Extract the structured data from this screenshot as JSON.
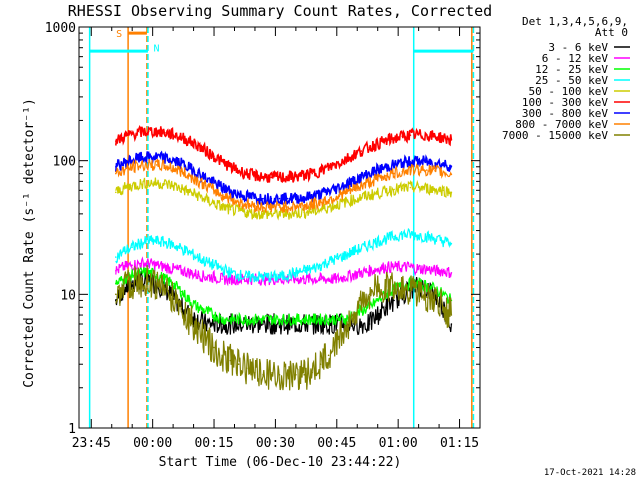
{
  "chart_data": {
    "type": "line",
    "title": "RHESSI Observing Summary Count Rates, Corrected",
    "xlabel": "Start Time (06-Dec-10 23:44:22)",
    "ylabel": "Corrected Count Rate (s⁻¹ detector⁻¹)",
    "yscale": "log",
    "ylim": [
      1,
      1000
    ],
    "xlim_minutes": [
      -3,
      95
    ],
    "x_ticks": [
      {
        "m": 0,
        "label": "23:45"
      },
      {
        "m": 15,
        "label": "00:00"
      },
      {
        "m": 30,
        "label": "00:15"
      },
      {
        "m": 45,
        "label": "00:30"
      },
      {
        "m": 60,
        "label": "00:45"
      },
      {
        "m": 75,
        "label": "01:00"
      },
      {
        "m": 90,
        "label": "01:15"
      }
    ],
    "y_ticks": [
      {
        "v": 1,
        "label": "1"
      },
      {
        "v": 10,
        "label": "10"
      },
      {
        "v": 100,
        "label": "100"
      },
      {
        "v": 1000,
        "label": "1000"
      }
    ],
    "legend_header": [
      "Det 1,3,4,5,6,9,",
      "Att 0"
    ],
    "series": [
      {
        "name": "3 - 6 keV",
        "color": "#000000",
        "x": [
          6,
          8,
          10,
          12,
          14,
          16,
          18,
          20,
          22,
          24,
          26,
          28,
          30,
          32,
          34,
          36,
          38,
          40,
          42,
          44,
          46,
          48,
          50,
          52,
          54,
          56,
          58,
          60,
          62,
          64,
          66,
          68,
          70,
          72,
          74,
          76,
          78,
          80,
          82,
          84,
          86,
          88
        ],
        "y": [
          9,
          11,
          12,
          12.5,
          12.5,
          12,
          11,
          9.5,
          8,
          7,
          6.5,
          6,
          6,
          6,
          6,
          6,
          6,
          6,
          6,
          6,
          6,
          6,
          6,
          6,
          6,
          6,
          6,
          6,
          6,
          6,
          6,
          6,
          7,
          8,
          9,
          10,
          11,
          11.5,
          11,
          10,
          8,
          6
        ]
      },
      {
        "name": "6 - 12 keV",
        "color": "#ff00ff",
        "x": [
          6,
          8,
          10,
          12,
          14,
          16,
          18,
          20,
          22,
          24,
          26,
          28,
          30,
          32,
          34,
          36,
          38,
          40,
          42,
          44,
          46,
          48,
          50,
          52,
          54,
          56,
          58,
          60,
          62,
          64,
          66,
          68,
          70,
          72,
          74,
          76,
          78,
          80,
          82,
          84,
          86,
          88
        ],
        "y": [
          15,
          16,
          16.5,
          17,
          17,
          16.5,
          16,
          15.5,
          15,
          14.5,
          14,
          13.5,
          13.5,
          13,
          13,
          13,
          13,
          13,
          13,
          13,
          13,
          13,
          13,
          13,
          13,
          13,
          13,
          13,
          13.5,
          14,
          14.5,
          15,
          15.5,
          16,
          16,
          16,
          16,
          15.5,
          15.5,
          15,
          15,
          14.5
        ]
      },
      {
        "name": "12 - 25 keV",
        "color": "#00ff00",
        "x": [
          6,
          8,
          10,
          12,
          14,
          16,
          18,
          20,
          22,
          24,
          26,
          28,
          30,
          32,
          34,
          36,
          38,
          40,
          42,
          44,
          46,
          48,
          50,
          52,
          54,
          56,
          58,
          60,
          62,
          64,
          66,
          68,
          70,
          72,
          74,
          76,
          78,
          80,
          82,
          84,
          86,
          88
        ],
        "y": [
          12,
          13,
          14,
          14.5,
          14.5,
          14,
          13,
          12,
          10.5,
          9,
          8,
          7.5,
          7,
          6.5,
          6.5,
          6.5,
          6.5,
          6.5,
          6.5,
          6.5,
          6.5,
          6.5,
          6.5,
          6.5,
          6.5,
          6.5,
          6.5,
          6.5,
          6.5,
          7,
          7.5,
          8,
          9,
          10,
          11,
          11.5,
          12,
          12,
          11.5,
          11,
          10,
          9
        ]
      },
      {
        "name": "25 - 50 keV",
        "color": "#00ffff",
        "x": [
          6,
          8,
          10,
          12,
          14,
          16,
          18,
          20,
          22,
          24,
          26,
          28,
          30,
          32,
          34,
          36,
          38,
          40,
          42,
          44,
          46,
          48,
          50,
          52,
          54,
          56,
          58,
          60,
          62,
          64,
          66,
          68,
          70,
          72,
          74,
          76,
          78,
          80,
          82,
          84,
          86,
          88
        ],
        "y": [
          19,
          21,
          22.5,
          24,
          25,
          25,
          24.5,
          23.5,
          22,
          20.5,
          19,
          17.5,
          16.5,
          15.5,
          14.5,
          14,
          13.5,
          13.5,
          13.5,
          13.5,
          13.5,
          14,
          14.5,
          15,
          15.5,
          16.5,
          17.5,
          18.5,
          19.5,
          21,
          22,
          23.5,
          25,
          26,
          27,
          28,
          28,
          27.5,
          27,
          26,
          25,
          24
        ]
      },
      {
        "name": "50 - 100 keV",
        "color": "#cccc00",
        "x": [
          6,
          8,
          10,
          12,
          14,
          16,
          18,
          20,
          22,
          24,
          26,
          28,
          30,
          32,
          34,
          36,
          38,
          40,
          42,
          44,
          46,
          48,
          50,
          52,
          54,
          56,
          58,
          60,
          62,
          64,
          66,
          68,
          70,
          72,
          74,
          76,
          78,
          80,
          82,
          84,
          86,
          88
        ],
        "y": [
          58,
          62,
          65,
          67,
          68,
          68,
          67,
          65,
          62,
          58,
          55,
          51,
          48,
          45,
          43,
          42,
          41,
          40,
          40,
          40,
          40,
          40,
          40.5,
          41,
          42,
          43,
          45,
          47,
          49,
          51,
          53,
          55,
          57,
          59,
          61,
          62,
          63,
          63,
          62,
          61,
          60,
          58
        ]
      },
      {
        "name": "100 - 300 keV",
        "color": "#ff0000",
        "x": [
          6,
          8,
          10,
          12,
          14,
          16,
          18,
          20,
          22,
          24,
          26,
          28,
          30,
          32,
          34,
          36,
          38,
          40,
          42,
          44,
          46,
          48,
          50,
          52,
          54,
          56,
          58,
          60,
          62,
          64,
          66,
          68,
          70,
          72,
          74,
          76,
          78,
          80,
          82,
          84,
          86,
          88
        ],
        "y": [
          140,
          150,
          158,
          163,
          165,
          165,
          162,
          157,
          150,
          140,
          130,
          118,
          108,
          98,
          90,
          84,
          80,
          77,
          76,
          75,
          75,
          75,
          76,
          78,
          80,
          84,
          89,
          95,
          102,
          110,
          118,
          126,
          134,
          141,
          147,
          152,
          155,
          156,
          155,
          152,
          148,
          143
        ]
      },
      {
        "name": "300 - 800 keV",
        "color": "#0000ff",
        "x": [
          6,
          8,
          10,
          12,
          14,
          16,
          18,
          20,
          22,
          24,
          26,
          28,
          30,
          32,
          34,
          36,
          38,
          40,
          42,
          44,
          46,
          48,
          50,
          52,
          54,
          56,
          58,
          60,
          62,
          64,
          66,
          68,
          70,
          72,
          74,
          76,
          78,
          80,
          82,
          84,
          86,
          88
        ],
        "y": [
          90,
          96,
          101,
          105,
          106,
          106,
          104,
          100,
          95,
          88,
          81,
          74,
          68,
          63,
          59,
          56,
          54,
          53,
          52,
          52,
          52,
          52,
          52.5,
          53,
          54,
          56,
          59,
          62,
          66,
          70,
          75,
          80,
          85,
          89,
          93,
          96,
          98,
          99,
          98,
          96,
          94,
          91
        ]
      },
      {
        "name": "800 - 7000 keV",
        "color": "#ff8000",
        "x": [
          6,
          8,
          10,
          12,
          14,
          16,
          18,
          20,
          22,
          24,
          26,
          28,
          30,
          32,
          34,
          36,
          38,
          40,
          42,
          44,
          46,
          48,
          50,
          52,
          54,
          56,
          58,
          60,
          62,
          64,
          66,
          68,
          70,
          72,
          74,
          76,
          78,
          80,
          82,
          84,
          86,
          88
        ],
        "y": [
          80,
          85,
          89,
          92,
          93,
          93,
          91,
          88,
          83,
          77,
          71,
          65,
          60,
          55,
          52,
          49,
          47,
          46,
          45,
          45,
          45,
          45,
          45.5,
          46,
          47,
          49,
          51,
          54,
          57,
          61,
          65,
          69,
          73,
          77,
          80,
          83,
          85,
          86,
          85,
          84,
          82,
          79
        ]
      },
      {
        "name": "7000 - 15000 keV",
        "color": "#808000",
        "x": [
          6,
          8,
          10,
          12,
          14,
          16,
          18,
          20,
          22,
          24,
          26,
          28,
          30,
          32,
          34,
          36,
          38,
          40,
          42,
          44,
          46,
          48,
          50,
          52,
          54,
          56,
          58,
          60,
          62,
          64,
          66,
          68,
          70,
          72,
          74,
          76,
          78,
          80,
          82,
          84,
          86,
          88
        ],
        "y": [
          10,
          11,
          12,
          12.5,
          12.5,
          12,
          11,
          9.5,
          8,
          6.5,
          5.5,
          4.5,
          4,
          3.5,
          3.2,
          3,
          2.8,
          2.6,
          2.5,
          2.5,
          2.5,
          2.5,
          2.5,
          2.5,
          2.6,
          3,
          3.5,
          4.5,
          5.5,
          7,
          8.5,
          10,
          11,
          11.5,
          11.5,
          11,
          10.5,
          10,
          9.5,
          9,
          8,
          7
        ]
      }
    ],
    "annotations": {
      "markers": [
        {
          "label": "S",
          "color": "#ff8000",
          "m": 9.0,
          "level_line": 900,
          "bar": [
            9.0,
            13.6
          ]
        },
        {
          "label": "N",
          "color": "#00ffff",
          "m": 14.0,
          "level_line": 700
        }
      ],
      "vertical_lines": [
        {
          "m": -0.4,
          "color": "#00ffff",
          "style": "solid"
        },
        {
          "m": 9.0,
          "color": "#ff8000",
          "style": "solid"
        },
        {
          "m": 13.6,
          "color": "#ff8000",
          "style": "dashed"
        },
        {
          "m": 13.85,
          "color": "#00ffff",
          "style": "dashed"
        },
        {
          "m": 78.8,
          "color": "#00ffff",
          "style": "solid"
        },
        {
          "m": 93.0,
          "color": "#ff8000",
          "style": "solid"
        },
        {
          "m": 93.4,
          "color": "#00ffff",
          "style": "dashed"
        }
      ],
      "horizontal_segments": [
        {
          "from": -0.4,
          "to": 13.85,
          "y": 660,
          "color": "#00ffff"
        },
        {
          "from": 78.8,
          "to": 93.4,
          "y": 660,
          "color": "#00ffff"
        }
      ]
    },
    "timestamp": "17-Oct-2021 14:28"
  }
}
